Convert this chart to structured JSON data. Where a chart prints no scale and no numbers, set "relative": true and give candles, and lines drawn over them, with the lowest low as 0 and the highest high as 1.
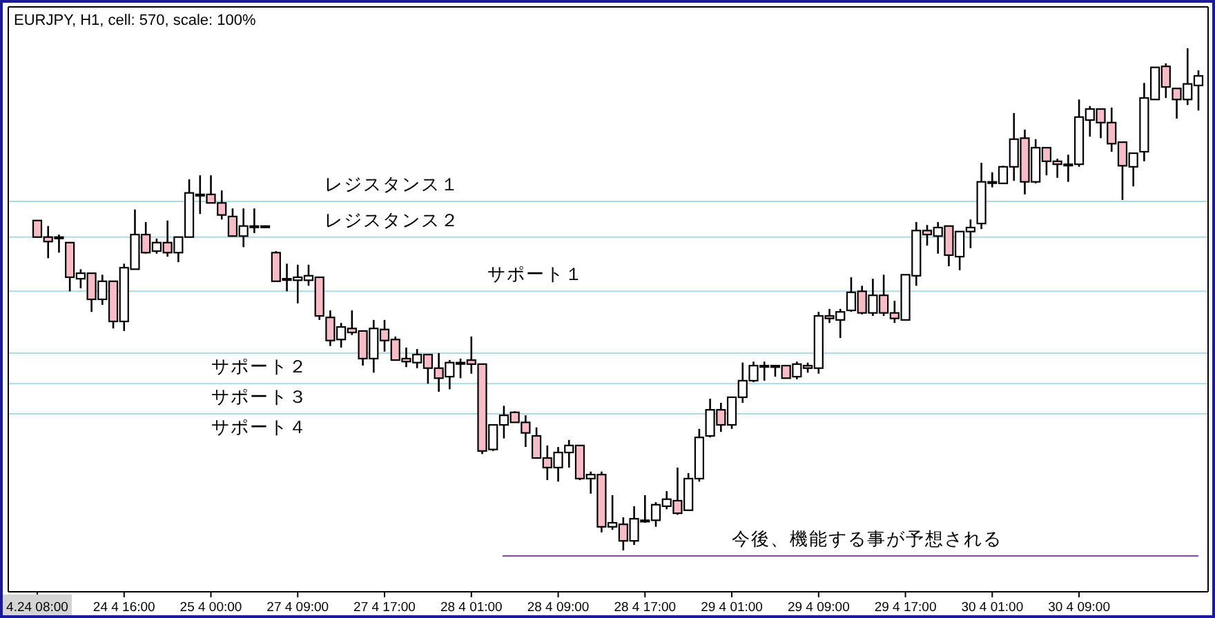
{
  "chart_data": {
    "type": "candlestick",
    "title": "EURJPY, H1, cell: 570, scale: 100%",
    "relative": true,
    "categories": [
      "4.24 08:00",
      null,
      null,
      null,
      null,
      null,
      null,
      null,
      "24 4 16:00",
      null,
      null,
      null,
      null,
      null,
      null,
      null,
      "25 4 00:00",
      null,
      null,
      null,
      null,
      null,
      null,
      null,
      "27 4 09:00",
      null,
      null,
      null,
      null,
      null,
      null,
      null,
      "27 4 17:00",
      null,
      null,
      null,
      null,
      null,
      null,
      null,
      "28 4 01:00",
      null,
      null,
      null,
      null,
      null,
      null,
      null,
      "28 4 09:00",
      null,
      null,
      null,
      null,
      null,
      null,
      null,
      "28 4 17:00",
      null,
      null,
      null,
      null,
      null,
      null,
      null,
      "29 4 01:00",
      null,
      null,
      null,
      null,
      null,
      null,
      null,
      "29 4 09:00",
      null,
      null,
      null,
      null,
      null,
      null,
      null,
      "29 4 17:00",
      null,
      null,
      null,
      null,
      null,
      null,
      null,
      "30 4 01:00",
      null,
      null,
      null,
      null,
      null,
      null,
      null,
      "30 4 09:00",
      null,
      null,
      null,
      null,
      null,
      null,
      null,
      null,
      null,
      null,
      null
    ],
    "ohlc": [
      [
        0.657,
        0.657,
        0.624,
        0.624
      ],
      [
        0.624,
        0.646,
        0.582,
        0.615
      ],
      [
        0.624,
        0.629,
        0.593,
        0.624
      ],
      [
        0.613,
        0.613,
        0.516,
        0.544
      ],
      [
        0.541,
        0.56,
        0.522,
        0.552
      ],
      [
        0.552,
        0.552,
        0.475,
        0.5
      ],
      [
        0.5,
        0.549,
        0.489,
        0.536
      ],
      [
        0.536,
        0.536,
        0.442,
        0.456
      ],
      [
        0.456,
        0.571,
        0.437,
        0.563
      ],
      [
        0.56,
        0.679,
        0.56,
        0.629
      ],
      [
        0.629,
        0.654,
        0.591,
        0.593
      ],
      [
        0.596,
        0.621,
        0.591,
        0.613
      ],
      [
        0.613,
        0.657,
        0.585,
        0.593
      ],
      [
        0.593,
        0.624,
        0.574,
        0.624
      ],
      [
        0.624,
        0.739,
        0.624,
        0.712
      ],
      [
        0.709,
        0.747,
        0.67,
        0.709
      ],
      [
        0.709,
        0.747,
        0.692,
        0.692
      ],
      [
        0.692,
        0.717,
        0.659,
        0.668
      ],
      [
        0.665,
        0.681,
        0.626,
        0.626
      ],
      [
        0.626,
        0.681,
        0.604,
        0.646
      ],
      [
        0.646,
        0.681,
        0.632,
        0.646
      ],
      [
        0.646,
        0.646,
        0.646,
        0.646
      ],
      [
        0.593,
        0.596,
        0.536,
        0.536
      ],
      [
        0.541,
        0.571,
        0.516,
        0.541
      ],
      [
        0.538,
        0.569,
        0.492,
        0.544
      ],
      [
        0.538,
        0.569,
        0.527,
        0.547
      ],
      [
        0.544,
        0.544,
        0.459,
        0.467
      ],
      [
        0.464,
        0.478,
        0.407,
        0.418
      ],
      [
        0.42,
        0.453,
        0.404,
        0.445
      ],
      [
        0.442,
        0.478,
        0.429,
        0.434
      ],
      [
        0.437,
        0.437,
        0.368,
        0.382
      ],
      [
        0.382,
        0.459,
        0.354,
        0.442
      ],
      [
        0.44,
        0.459,
        0.396,
        0.418
      ],
      [
        0.42,
        0.426,
        0.379,
        0.379
      ],
      [
        0.382,
        0.404,
        0.365,
        0.376
      ],
      [
        0.374,
        0.401,
        0.363,
        0.39
      ],
      [
        0.39,
        0.39,
        0.332,
        0.363
      ],
      [
        0.363,
        0.393,
        0.316,
        0.343
      ],
      [
        0.346,
        0.379,
        0.321,
        0.374
      ],
      [
        0.374,
        0.382,
        0.343,
        0.374
      ],
      [
        0.379,
        0.426,
        0.352,
        0.371
      ],
      [
        0.371,
        0.371,
        0.192,
        0.198
      ],
      [
        0.201,
        0.25,
        0.198,
        0.25
      ],
      [
        0.25,
        0.288,
        0.223,
        0.269
      ],
      [
        0.275,
        0.277,
        0.255,
        0.255
      ],
      [
        0.255,
        0.269,
        0.206,
        0.234
      ],
      [
        0.228,
        0.245,
        0.184,
        0.184
      ],
      [
        0.184,
        0.209,
        0.14,
        0.165
      ],
      [
        0.165,
        0.206,
        0.137,
        0.195
      ],
      [
        0.195,
        0.22,
        0.165,
        0.209
      ],
      [
        0.209,
        0.209,
        0.14,
        0.143
      ],
      [
        0.143,
        0.157,
        0.113,
        0.151
      ],
      [
        0.151,
        0.157,
        0.036,
        0.047
      ],
      [
        0.047,
        0.11,
        0.041,
        0.055
      ],
      [
        0.052,
        0.066,
        0.0,
        0.019
      ],
      [
        0.019,
        0.088,
        0.011,
        0.063
      ],
      [
        0.06,
        0.11,
        0.055,
        0.06
      ],
      [
        0.06,
        0.096,
        0.047,
        0.091
      ],
      [
        0.088,
        0.118,
        0.082,
        0.102
      ],
      [
        0.099,
        0.165,
        0.071,
        0.074
      ],
      [
        0.08,
        0.154,
        0.08,
        0.143
      ],
      [
        0.143,
        0.242,
        0.137,
        0.225
      ],
      [
        0.228,
        0.302,
        0.225,
        0.28
      ],
      [
        0.28,
        0.294,
        0.236,
        0.25
      ],
      [
        0.25,
        0.305,
        0.242,
        0.305
      ],
      [
        0.305,
        0.374,
        0.294,
        0.338
      ],
      [
        0.338,
        0.376,
        0.335,
        0.368
      ],
      [
        0.368,
        0.376,
        0.338,
        0.368
      ],
      [
        0.368,
        0.368,
        0.346,
        0.365
      ],
      [
        0.368,
        0.368,
        0.343,
        0.343
      ],
      [
        0.346,
        0.376,
        0.341,
        0.371
      ],
      [
        0.368,
        0.374,
        0.354,
        0.363
      ],
      [
        0.363,
        0.475,
        0.352,
        0.467
      ],
      [
        0.467,
        0.481,
        0.453,
        0.462
      ],
      [
        0.459,
        0.481,
        0.423,
        0.475
      ],
      [
        0.478,
        0.544,
        0.475,
        0.514
      ],
      [
        0.516,
        0.527,
        0.47,
        0.473
      ],
      [
        0.473,
        0.541,
        0.467,
        0.508
      ],
      [
        0.508,
        0.549,
        0.467,
        0.473
      ],
      [
        0.473,
        0.497,
        0.453,
        0.462
      ],
      [
        0.459,
        0.549,
        0.459,
        0.549
      ],
      [
        0.547,
        0.654,
        0.527,
        0.637
      ],
      [
        0.637,
        0.648,
        0.607,
        0.629
      ],
      [
        0.626,
        0.654,
        0.591,
        0.643
      ],
      [
        0.646,
        0.646,
        0.566,
        0.588
      ],
      [
        0.585,
        0.635,
        0.558,
        0.635
      ],
      [
        0.635,
        0.659,
        0.602,
        0.643
      ],
      [
        0.651,
        0.772,
        0.64,
        0.734
      ],
      [
        0.734,
        0.753,
        0.723,
        0.734
      ],
      [
        0.731,
        0.766,
        0.731,
        0.764
      ],
      [
        0.764,
        0.871,
        0.736,
        0.819
      ],
      [
        0.821,
        0.838,
        0.709,
        0.734
      ],
      [
        0.734,
        0.819,
        0.731,
        0.802
      ],
      [
        0.802,
        0.802,
        0.747,
        0.775
      ],
      [
        0.775,
        0.78,
        0.742,
        0.769
      ],
      [
        0.769,
        0.788,
        0.734,
        0.769
      ],
      [
        0.769,
        0.898,
        0.764,
        0.863
      ],
      [
        0.857,
        0.885,
        0.824,
        0.879
      ],
      [
        0.879,
        0.879,
        0.821,
        0.852
      ],
      [
        0.852,
        0.882,
        0.794,
        0.81
      ],
      [
        0.813,
        0.813,
        0.698,
        0.766
      ],
      [
        0.764,
        0.791,
        0.725,
        0.791
      ],
      [
        0.794,
        0.931,
        0.775,
        0.901
      ],
      [
        0.898,
        0.962,
        0.898,
        0.962
      ],
      [
        0.964,
        0.97,
        0.901,
        0.923
      ],
      [
        0.92,
        0.92,
        0.86,
        0.898
      ],
      [
        0.898,
        1.0,
        0.887,
        0.929
      ],
      [
        0.926,
        0.956,
        0.876,
        0.945
      ]
    ],
    "ref_lines": [
      {
        "axis": "y",
        "value": 0.695,
        "label": "レジスタンス１",
        "color": "#add8e6"
      },
      {
        "axis": "y",
        "value": 0.624,
        "label": "レジスタンス２",
        "color": "#add8e6"
      },
      {
        "axis": "y",
        "value": 0.516,
        "label": "サポート１",
        "color": "#add8e6"
      },
      {
        "axis": "y",
        "value": 0.393,
        "label": "サポート２",
        "color": "#add8e6"
      },
      {
        "axis": "y",
        "value": 0.332,
        "label": "サポート３",
        "color": "#add8e6"
      },
      {
        "axis": "y",
        "value": 0.272,
        "label": "サポート４",
        "color": "#add8e6"
      },
      {
        "axis": "y",
        "value": -0.011,
        "label": "今後、機能する事が予想される",
        "color": "#8844bb"
      }
    ]
  }
}
